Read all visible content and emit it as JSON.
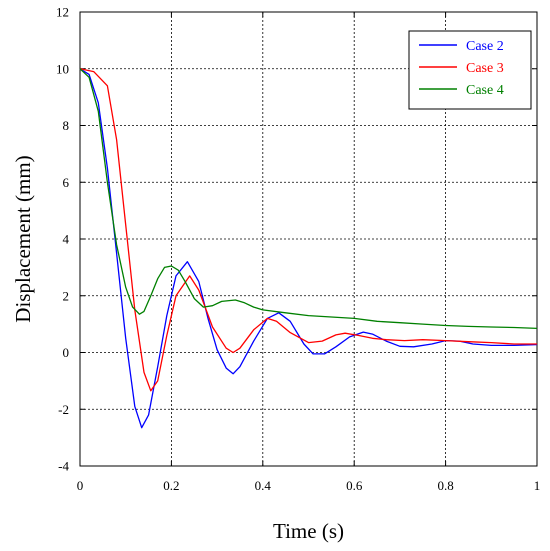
{
  "chart_data": {
    "type": "line",
    "xlabel": "Time (s)",
    "ylabel": "Displacement (mm)",
    "xlim": [
      0,
      1
    ],
    "ylim": [
      -4,
      12
    ],
    "x_ticks": [
      0,
      0.2,
      0.4,
      0.6,
      0.8,
      1
    ],
    "x_tick_labels": [
      "0",
      "0.2",
      "0.4",
      "0.6",
      "0.8",
      "1"
    ],
    "y_ticks": [
      -4,
      -2,
      0,
      2,
      4,
      6,
      8,
      10,
      12
    ],
    "y_tick_labels": [
      "-4",
      "-2",
      "0",
      "2",
      "4",
      "6",
      "8",
      "10",
      "12"
    ],
    "grid": true,
    "legend_position": "top-right",
    "series": [
      {
        "name": "Case 2",
        "color": "#0000ff",
        "x": [
          0,
          0.02,
          0.04,
          0.06,
          0.08,
          0.1,
          0.12,
          0.135,
          0.15,
          0.17,
          0.19,
          0.21,
          0.235,
          0.26,
          0.28,
          0.3,
          0.32,
          0.335,
          0.35,
          0.38,
          0.41,
          0.435,
          0.46,
          0.49,
          0.51,
          0.535,
          0.56,
          0.59,
          0.62,
          0.64,
          0.67,
          0.7,
          0.73,
          0.77,
          0.8,
          0.83,
          0.86,
          0.9,
          0.95,
          1.0
        ],
        "y": [
          10,
          9.8,
          8.8,
          6.5,
          3.5,
          0.5,
          -1.9,
          -2.65,
          -2.2,
          -0.5,
          1.3,
          2.7,
          3.2,
          2.5,
          1.2,
          0.1,
          -0.55,
          -0.75,
          -0.5,
          0.4,
          1.2,
          1.4,
          1.1,
          0.3,
          -0.05,
          -0.05,
          0.2,
          0.55,
          0.72,
          0.65,
          0.4,
          0.22,
          0.2,
          0.3,
          0.42,
          0.4,
          0.3,
          0.25,
          0.25,
          0.28
        ]
      },
      {
        "name": "Case 3",
        "color": "#ff0000",
        "x": [
          0,
          0.03,
          0.06,
          0.08,
          0.1,
          0.12,
          0.14,
          0.155,
          0.17,
          0.19,
          0.21,
          0.24,
          0.26,
          0.29,
          0.32,
          0.335,
          0.35,
          0.38,
          0.41,
          0.43,
          0.46,
          0.5,
          0.53,
          0.56,
          0.58,
          0.61,
          0.64,
          0.67,
          0.71,
          0.75,
          0.8,
          0.85,
          0.9,
          0.95,
          1.0
        ],
        "y": [
          10,
          9.9,
          9.4,
          7.5,
          4.5,
          1.5,
          -0.7,
          -1.35,
          -1.0,
          0.6,
          2.0,
          2.7,
          2.2,
          0.9,
          0.15,
          0.0,
          0.15,
          0.8,
          1.2,
          1.1,
          0.7,
          0.35,
          0.4,
          0.62,
          0.68,
          0.6,
          0.5,
          0.45,
          0.42,
          0.45,
          0.42,
          0.38,
          0.35,
          0.3,
          0.3
        ]
      },
      {
        "name": "Case 4",
        "color": "#008000",
        "x": [
          0,
          0.02,
          0.04,
          0.06,
          0.08,
          0.1,
          0.115,
          0.13,
          0.14,
          0.155,
          0.17,
          0.185,
          0.2,
          0.215,
          0.23,
          0.25,
          0.27,
          0.29,
          0.31,
          0.34,
          0.36,
          0.38,
          0.4,
          0.45,
          0.5,
          0.55,
          0.6,
          0.65,
          0.7,
          0.75,
          0.8,
          0.85,
          0.9,
          0.95,
          1.0
        ],
        "y": [
          10,
          9.7,
          8.5,
          6.0,
          3.8,
          2.3,
          1.6,
          1.35,
          1.45,
          2.0,
          2.6,
          3.0,
          3.05,
          2.9,
          2.5,
          1.9,
          1.6,
          1.65,
          1.8,
          1.85,
          1.75,
          1.6,
          1.5,
          1.4,
          1.3,
          1.25,
          1.2,
          1.1,
          1.05,
          1.0,
          0.95,
          0.92,
          0.9,
          0.88,
          0.85
        ]
      }
    ]
  }
}
